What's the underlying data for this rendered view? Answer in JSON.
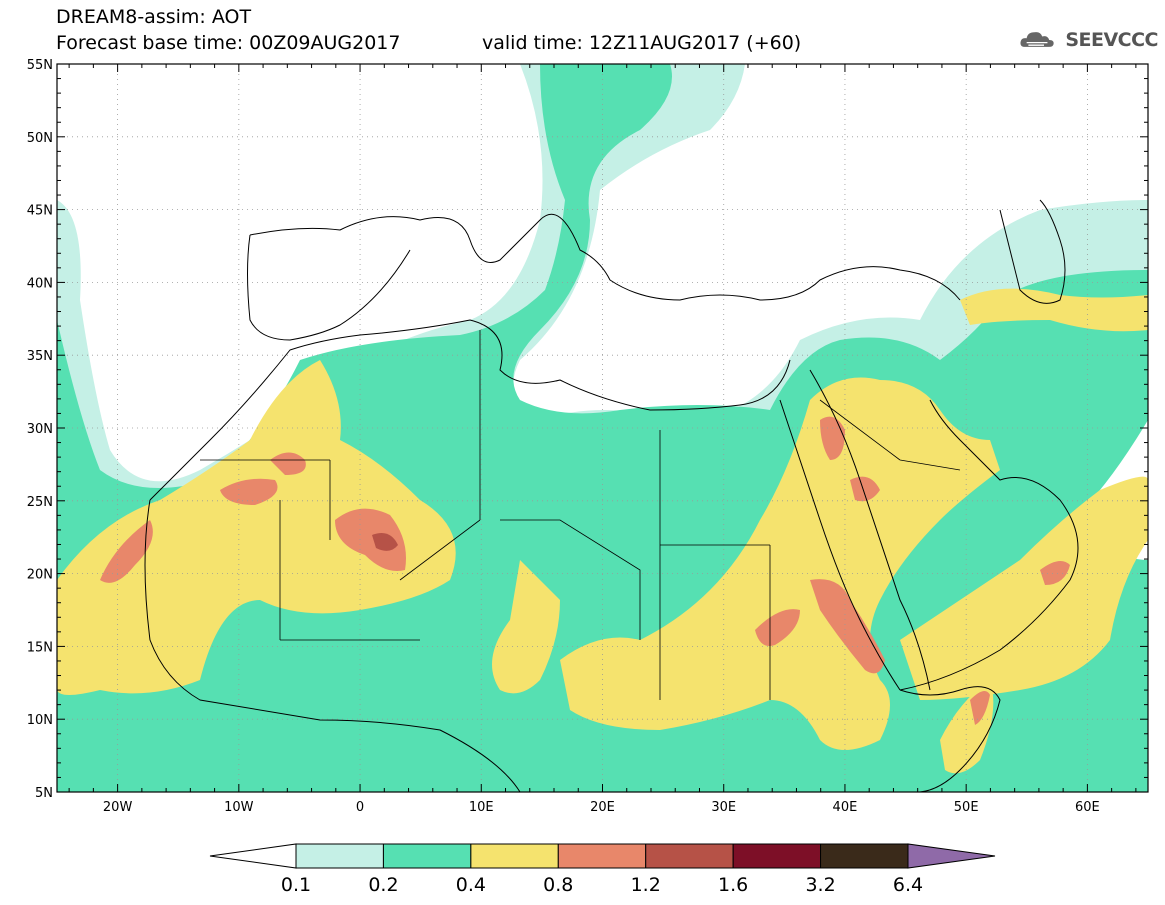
{
  "header": {
    "title_line1": "DREAM8-assim: AOT",
    "title_line2": "Forecast base time: 00Z09AUG2017",
    "title_line3": "valid time: 12Z11AUG2017 (+60)",
    "logo_text": "SEEVCCC"
  },
  "map": {
    "lon_range": [
      -25,
      65
    ],
    "lat_range": [
      5,
      55
    ],
    "lat_labels": [
      "55N",
      "50N",
      "45N",
      "40N",
      "35N",
      "30N",
      "25N",
      "20N",
      "15N",
      "10N",
      "5N"
    ],
    "lat_values": [
      55,
      50,
      45,
      40,
      35,
      30,
      25,
      20,
      15,
      10,
      5
    ],
    "lon_labels": [
      "20W",
      "10W",
      "0",
      "10E",
      "20E",
      "30E",
      "40E",
      "50E",
      "60E"
    ],
    "lon_values": [
      -20,
      -10,
      0,
      10,
      20,
      30,
      40,
      50,
      60
    ]
  },
  "colorbar": {
    "levels": [
      "0.1",
      "0.2",
      "0.4",
      "0.8",
      "1.2",
      "1.6",
      "3.2",
      "6.4"
    ],
    "colors": [
      "#c5f0e6",
      "#56e0b2",
      "#f5e36e",
      "#e8876a",
      "#b65247",
      "#7d0f27",
      "#3a2a1a"
    ],
    "over_color": "#8f6aa8",
    "under_color": "#ffffff"
  }
}
